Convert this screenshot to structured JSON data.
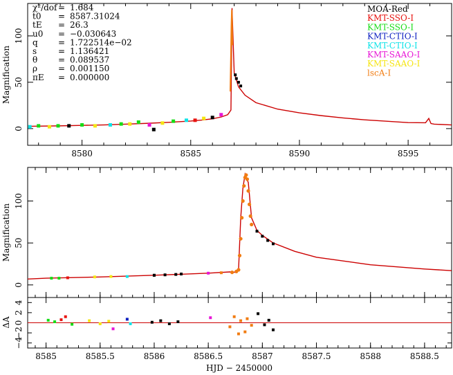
{
  "chart_data": [
    {
      "type": "line",
      "panel": "top",
      "ylabel": "Magnification",
      "xlim": [
        8577.5,
        8597.0
      ],
      "ylim": [
        -18,
        135
      ],
      "xticks": [
        8580,
        8585,
        8590,
        8595
      ],
      "yticks": [
        0,
        50,
        100
      ],
      "grid": false,
      "params": [
        {
          "name": "χ²/dof",
          "eq": "=",
          "value": "1.684"
        },
        {
          "name": "t0",
          "eq": "=",
          "value": "8587.31024"
        },
        {
          "name": "tE",
          "eq": "=",
          "value": "26.3"
        },
        {
          "name": "u0",
          "eq": "=",
          "value": "−0.030643"
        },
        {
          "name": "q",
          "eq": "=",
          "value": "1.722514e−02"
        },
        {
          "name": "s",
          "eq": "=",
          "value": "1.136421"
        },
        {
          "name": "θ",
          "eq": "=",
          "value": "0.089537"
        },
        {
          "name": "ρ",
          "eq": "=",
          "value": "0.001150"
        },
        {
          "name": "πE",
          "eq": "=",
          "value": "0.000000"
        }
      ],
      "legend": [
        {
          "label": "MOA-Red",
          "color": "#000000"
        },
        {
          "label": "KMT-SSO-I",
          "color": "#e8130f"
        },
        {
          "label": "KMT-SSO-I",
          "color": "#16dd16"
        },
        {
          "label": "KMT-CTIO-I",
          "color": "#0b1ec0"
        },
        {
          "label": "KMT-CTIO-I",
          "color": "#0fe3e8"
        },
        {
          "label": "KMT-SAAO-I",
          "color": "#e815d6"
        },
        {
          "label": "KMT-SAAO-I",
          "color": "#f5e512"
        },
        {
          "label": "lscA-I",
          "color": "#f17c12"
        }
      ],
      "series": [
        {
          "label": "model",
          "color": "#cc0000",
          "x": [
            8577.5,
            8579,
            8580,
            8581,
            8582,
            8583,
            8584,
            8585,
            8585.5,
            8586,
            8586.4,
            8586.7,
            8586.85,
            8586.9,
            8587.0,
            8587.2,
            8587.5,
            8588,
            8589,
            8590,
            8591,
            8592,
            8593,
            8594,
            8595,
            8595.8,
            8595.95,
            8596.05,
            8596.2,
            8597
          ],
          "y": [
            2.5,
            3,
            3.5,
            4,
            4.8,
            5.7,
            6.8,
            8.2,
            9.2,
            10.6,
            12.5,
            15,
            20,
            130,
            60,
            45,
            36,
            28,
            21,
            17,
            14,
            11.5,
            9.5,
            8,
            6.5,
            6.3,
            11,
            5.5,
            4.8,
            4
          ]
        },
        {
          "label": "lscA-I peak",
          "color": "#f17c12",
          "x": [
            8586.82,
            8586.85,
            8586.87,
            8586.89,
            8586.9,
            8586.92
          ],
          "y": [
            40,
            80,
            110,
            128,
            120,
            90
          ]
        }
      ]
    },
    {
      "type": "line",
      "panel": "middle",
      "ylabel": "Magnification",
      "xlim": [
        8584.83,
        8588.75
      ],
      "ylim": [
        -15,
        140
      ],
      "yticks": [
        0,
        50,
        100
      ],
      "grid": false,
      "series": [
        {
          "label": "model",
          "color": "#cc0000",
          "x": [
            8584.83,
            8585,
            8585.5,
            8586,
            8586.3,
            8586.5,
            8586.7,
            8586.76,
            8586.78,
            8586.8,
            8586.82,
            8586.84,
            8586.87,
            8586.9,
            8586.95,
            8587,
            8587.1,
            8587.3,
            8587.5,
            8588,
            8588.5,
            8588.75
          ],
          "y": [
            7,
            8,
            9.5,
            11.5,
            13,
            14,
            15.5,
            15,
            18,
            80,
            115,
            132,
            122,
            80,
            65,
            59,
            50,
            40,
            33,
            24,
            19,
            17
          ]
        },
        {
          "label": "lscA-I",
          "color": "#f17c12",
          "x": [
            8586.72,
            8586.76,
            8586.78,
            8586.79,
            8586.8,
            8586.81,
            8586.82,
            8586.83,
            8586.84,
            8586.85,
            8586.86,
            8586.87,
            8586.88,
            8586.89,
            8586.9
          ],
          "y": [
            15,
            16,
            18,
            35,
            55,
            80,
            100,
            118,
            128,
            131,
            126,
            112,
            96,
            82,
            72
          ]
        },
        {
          "label": "MOA-Red",
          "color": "#000000",
          "x": [
            8586.0,
            8586.1,
            8586.2,
            8586.25,
            8586.95,
            8587.0,
            8587.05,
            8587.1
          ],
          "y": [
            11.5,
            12,
            12.5,
            13,
            64,
            58,
            53,
            49
          ]
        }
      ]
    },
    {
      "type": "scatter",
      "panel": "residual",
      "ylabel": "ΔA",
      "xlabel": "HJD − 2450000",
      "xlim": [
        8584.83,
        8588.75
      ],
      "xticks": [
        8585,
        8585.5,
        8586,
        8586.5,
        8587,
        8587.5,
        8588,
        8588.5
      ],
      "xtick_labels": [
        "8585",
        "8585.5",
        "8586",
        "8586.5",
        "8587",
        "8587.5",
        "8588",
        "8588.5"
      ],
      "yticks": [
        -4,
        -2,
        0,
        2,
        4
      ],
      "ytick_labels": [
        "−4",
        "−2",
        "0",
        "2",
        "4"
      ],
      "zero_line_color": "#cc0000"
    }
  ]
}
